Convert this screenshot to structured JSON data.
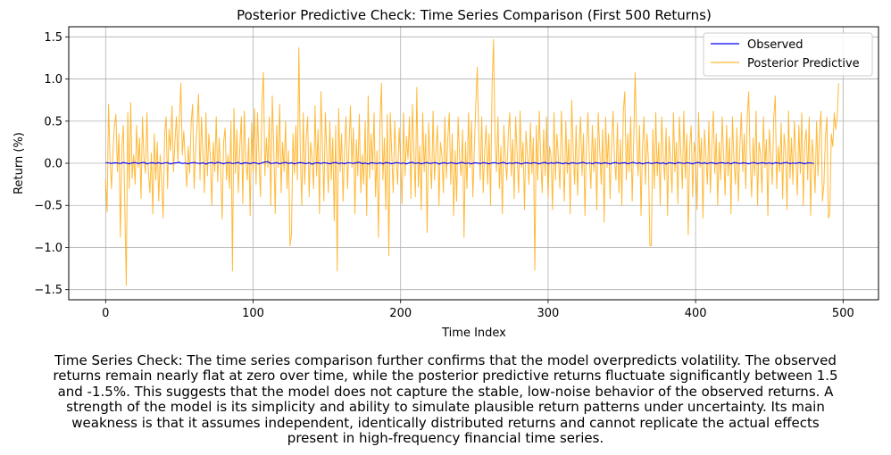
{
  "chart_data": {
    "type": "line",
    "title": "Posterior Predictive Check: Time Series Comparison (First 500 Returns)",
    "xlabel": "Time Index",
    "ylabel": "Return (%)",
    "xlim": [
      -25,
      524
    ],
    "ylim": [
      -1.62,
      1.62
    ],
    "xticks": [
      0,
      100,
      200,
      300,
      400,
      500
    ],
    "xtick_labels": [
      "0",
      "100",
      "200",
      "300",
      "400",
      "500"
    ],
    "yticks": [
      -1.5,
      -1.0,
      -0.5,
      0.0,
      0.5,
      1.0,
      1.5
    ],
    "ytick_labels": [
      "−1.5",
      "−1.0",
      "−0.5",
      "0.0",
      "0.5",
      "1.0",
      "1.5"
    ],
    "grid": true,
    "legend_position": "upper right",
    "series": [
      {
        "name": "Observed",
        "color": "#0000ff",
        "x_start": 0,
        "x_step": 2,
        "values": [
          0.008,
          0.004,
          -0.002,
          0.006,
          0.003,
          -0.004,
          0.01,
          0.002,
          -0.006,
          0.004,
          0.009,
          -0.003,
          0.005,
          0.012,
          -0.008,
          0.003,
          0.006,
          -0.002,
          0.007,
          -0.005,
          0.004,
          0.008,
          -0.009,
          0.002,
          0.006,
          0.011,
          -0.004,
          0.003,
          -0.007,
          0.005,
          0.009,
          0.001,
          -0.003,
          0.006,
          -0.01,
          0.004,
          0.007,
          -0.002,
          0.012,
          0.003,
          -0.006,
          0.005,
          0.008,
          -0.004,
          0.002,
          0.01,
          -0.008,
          0.006,
          0.003,
          -0.005,
          0.007,
          0.004,
          -0.009,
          0.005,
          0.015,
          0.02,
          -0.004,
          0.002,
          0.007,
          -0.006,
          0.004,
          0.011,
          -0.003,
          0.006,
          -0.008,
          0.003,
          0.009,
          0.002,
          -0.005,
          0.007,
          -0.012,
          0.004,
          0.006,
          -0.003,
          0.008,
          0.002,
          -0.007,
          0.005,
          0.01,
          -0.004,
          0.003,
          -0.006,
          0.008,
          0.004,
          -0.002,
          0.006,
          0.012,
          -0.005,
          0.003,
          -0.009,
          0.007,
          0.002,
          -0.004,
          0.006,
          -0.007,
          0.009,
          0.003,
          -0.006,
          0.005,
          0.008,
          -0.003,
          0.004,
          -0.008,
          0.006,
          0.011,
          -0.002,
          0.005,
          -0.007,
          0.003,
          0.009,
          -0.005,
          0.004,
          0.007,
          -0.01,
          0.003,
          0.006,
          -0.004,
          0.008,
          0.002,
          -0.006,
          0.005,
          0.01,
          -0.003,
          0.004,
          -0.008,
          0.006,
          0.003,
          -0.005,
          0.009,
          0.002,
          -0.007,
          0.005,
          0.008,
          -0.004,
          0.003,
          0.011,
          -0.006,
          0.004,
          -0.003,
          0.007,
          0.002,
          -0.009,
          0.005,
          0.006,
          -0.004,
          0.008,
          0.003,
          -0.007,
          0.004,
          0.01,
          -0.005,
          0.006,
          -0.002,
          0.009,
          0.003,
          -0.006,
          0.005,
          -0.008,
          0.007,
          0.002,
          -0.004,
          0.006,
          0.01,
          -0.003,
          0.004,
          -0.007,
          0.008,
          0.003,
          -0.005,
          0.006,
          0.002,
          -0.009,
          0.005,
          0.009,
          -0.004,
          0.003,
          0.007,
          -0.006,
          0.004,
          0.011,
          -0.003,
          0.006,
          -0.008,
          0.002,
          0.008,
          -0.005,
          0.004,
          0.007,
          -0.003,
          0.005,
          -0.009,
          0.006,
          0.003,
          -0.006,
          0.009,
          0.004,
          -0.004,
          0.007,
          0.002,
          -0.007,
          0.005,
          0.01,
          -0.003,
          0.006,
          -0.005,
          0.008,
          0.003,
          -0.006,
          0.004,
          0.007,
          -0.002,
          0.005,
          -0.008,
          0.009,
          0.003,
          -0.004,
          0.006,
          0.002,
          -0.007,
          0.004,
          0.008,
          -0.005,
          0.003,
          0.006,
          -0.003,
          0.005,
          -0.006,
          0.007,
          0.002,
          -0.004,
          0.006,
          0.009,
          -0.005,
          0.004,
          -0.002,
          0.007,
          0.003,
          -0.006,
          0.005,
          0.004,
          -0.003
        ]
      },
      {
        "name": "Posterior Predictive",
        "color": "#ffa500",
        "x_start": 0,
        "x_step": 1,
        "values": [
          -0.2,
          -0.58,
          0.7,
          0.05,
          -0.3,
          0.15,
          0.45,
          0.58,
          -0.1,
          0.35,
          -0.88,
          0.2,
          0.45,
          -0.5,
          -1.45,
          0.6,
          -0.3,
          0.72,
          -0.18,
          0.1,
          -0.25,
          0.45,
          -0.05,
          0.3,
          -0.42,
          0.55,
          0.05,
          -0.12,
          0.6,
          -0.1,
          -0.35,
          0.12,
          -0.6,
          0.35,
          -0.2,
          0.25,
          -0.45,
          0.1,
          -0.22,
          -0.65,
          0.35,
          0.55,
          -0.3,
          0.4,
          0.15,
          0.68,
          -0.1,
          0.25,
          0.55,
          0.02,
          0.5,
          0.95,
          0.1,
          0.38,
          0.05,
          -0.28,
          0.2,
          -0.12,
          0.48,
          0.7,
          -0.3,
          0.15,
          0.45,
          0.82,
          -0.2,
          0.55,
          0.1,
          -0.35,
          0.6,
          -0.15,
          0.35,
          0.08,
          -0.5,
          0.25,
          -0.1,
          0.55,
          -0.22,
          0.3,
          -0.08,
          -0.66,
          0.25,
          0.42,
          -0.2,
          0.1,
          -0.3,
          0.5,
          -1.28,
          0.65,
          -0.12,
          0.4,
          -0.35,
          0.2,
          0.55,
          -0.48,
          0.62,
          0.05,
          -0.2,
          0.3,
          -0.62,
          0.48,
          -0.1,
          0.65,
          -0.25,
          0.6,
          0.05,
          -0.4,
          0.72,
          1.08,
          -0.15,
          0.3,
          -0.05,
          0.55,
          -0.5,
          0.8,
          0.2,
          -0.6,
          0.45,
          -0.05,
          0.7,
          -0.35,
          0.25,
          -0.1,
          0.5,
          -0.3,
          0.15,
          -0.98,
          -0.85,
          0.35,
          -0.12,
          0.45,
          -0.2,
          1.37,
          0.1,
          -0.5,
          0.6,
          -0.25,
          0.3,
          0.55,
          -0.4,
          0.25,
          0.05,
          -0.3,
          0.68,
          -0.15,
          0.4,
          -0.6,
          0.85,
          0.2,
          -0.45,
          0.6,
          0.1,
          -0.35,
          0.5,
          -0.2,
          0.3,
          -0.68,
          0.45,
          -1.28,
          0.65,
          -0.1,
          0.35,
          -0.45,
          0.15,
          0.55,
          -0.3,
          0.2,
          0.68,
          -0.05,
          0.42,
          -0.6,
          0.28,
          -0.15,
          0.58,
          -0.35,
          0.1,
          -0.25,
          0.5,
          -0.62,
          0.8,
          -0.18,
          0.35,
          -0.08,
          0.6,
          -0.4,
          0.15,
          -0.88,
          0.45,
          0.95,
          -0.2,
          0.3,
          -0.55,
          0.58,
          -1.1,
          0.6,
          0.1,
          -0.35,
          0.5,
          0.05,
          -0.25,
          0.42,
          0.02,
          -0.48,
          0.6,
          -0.15,
          0.32,
          0.05,
          0.55,
          -0.42,
          0.7,
          0.15,
          -0.4,
          0.9,
          -0.28,
          0.2,
          -0.55,
          0.6,
          -0.1,
          0.35,
          -0.82,
          0.48,
          0.05,
          -0.3,
          0.62,
          -0.2,
          0.15,
          0.45,
          -0.5,
          0.25,
          0.1,
          -0.35,
          0.55,
          -0.18,
          0.3,
          0.6,
          -0.25,
          0.35,
          -0.62,
          0.15,
          -0.45,
          0.55,
          0.05,
          -0.15,
          0.4,
          -0.88,
          0.25,
          -0.3,
          0.6,
          -0.05,
          0.5,
          -0.4,
          0.2,
          0.72,
          1.14,
          0.3,
          -0.2,
          0.55,
          -0.35,
          0.15,
          0.45,
          -0.25,
          0.35,
          -0.5,
          0.9,
          1.47,
          0.3,
          -0.1,
          0.55,
          -0.3,
          0.2,
          -0.6,
          0.45,
          0.05,
          -0.2,
          0.35,
          0.6,
          -0.15,
          0.28,
          -0.42,
          0.55,
          0.1,
          -0.35,
          0.62,
          -0.05,
          0.25,
          -0.55,
          0.38,
          0.1,
          -0.25,
          0.48,
          -0.12,
          0.3,
          -1.27,
          0.45,
          -0.2,
          0.62,
          0.05,
          -0.35,
          0.4,
          -0.15,
          0.55,
          -0.4,
          0.2,
          0.08,
          -0.55,
          0.6,
          -0.2,
          0.35,
          0.05,
          -0.3,
          0.62,
          0.1,
          -0.45,
          0.5,
          -0.12,
          0.28,
          -0.6,
          0.75,
          0.15,
          -0.25,
          0.45,
          -0.38,
          0.2,
          0.55,
          -0.15,
          0.35,
          -0.62,
          0.2,
          0.6,
          0.05,
          -0.3,
          0.45,
          -0.1,
          0.3,
          -0.55,
          0.6,
          0.15,
          -0.25,
          0.4,
          -0.7,
          0.55,
          -0.05,
          0.35,
          -0.42,
          0.2,
          0.62,
          0.05,
          -0.2,
          0.48,
          -0.35,
          0.28,
          -0.5,
          0.62,
          0.85,
          -0.2,
          0.35,
          -0.1,
          0.55,
          -0.45,
          0.25,
          1.08,
          0.3,
          -0.15,
          0.45,
          -0.62,
          0.2,
          0.55,
          -0.25,
          0.35,
          0.05,
          -0.98,
          -0.98,
          0.4,
          -0.3,
          0.6,
          -0.15,
          0.25,
          -0.5,
          0.55,
          0.1,
          -0.2,
          0.42,
          -0.62,
          0.32,
          0.05,
          -0.35,
          0.6,
          -0.1,
          0.25,
          -0.48,
          0.55,
          0.12,
          -0.3,
          0.62,
          -0.18,
          0.35,
          -0.85,
          0.2,
          0.45,
          -0.4,
          0.25,
          0.1,
          -0.55,
          0.6,
          -0.05,
          0.3,
          -0.65,
          0.4,
          0.08,
          -0.25,
          0.5,
          -0.35,
          0.2,
          0.62,
          -0.12,
          0.35,
          -0.5,
          0.25,
          -0.2,
          0.55,
          0.1,
          -0.38,
          0.45,
          -0.15,
          0.3,
          -0.6,
          0.55,
          0.05,
          -0.25,
          0.42,
          -0.45,
          0.2,
          0.6,
          -0.1,
          0.35,
          -0.3,
          0.55,
          0.85,
          0.05,
          -0.4,
          0.3,
          -0.15,
          0.62,
          -0.5,
          0.25,
          0.12,
          -0.35,
          0.55,
          -0.05,
          0.28,
          -0.62,
          0.4,
          0.1,
          -0.25,
          0.55,
          0.8,
          -0.3,
          0.2,
          -0.1,
          0.48,
          -0.42,
          0.35,
          0.15,
          -0.55,
          0.62,
          -0.18,
          0.3,
          -0.25,
          0.5,
          0.05,
          -0.38,
          0.45,
          -0.12,
          0.6,
          -0.5,
          0.25,
          0.4,
          -0.2,
          0.55,
          -0.62,
          0.28,
          0.05,
          -0.35,
          0.5,
          -0.15,
          0.35,
          0.62,
          -0.45,
          -0.25,
          0.3,
          0.55,
          -0.65,
          -0.6,
          0.35,
          0.2,
          0.6,
          0.4,
          0.55,
          0.95
        ]
      }
    ]
  },
  "caption": {
    "lines": [
      "Time Series Check: The time series comparison further confirms that the model overpredicts volatility. The observed",
      "returns remain nearly flat at zero over time, while the posterior predictive returns fluctuate significantly between 1.5",
      "and -1.5%. This suggests that the model does not capture the stable, low-noise behavior of the observed returns. A",
      "strength of the model is its simplicity and ability to simulate plausible return patterns under uncertainty. Its main",
      "weakness is that it assumes independent, identically distributed returns and cannot replicate the actual effects",
      "present in high-frequency financial time series."
    ]
  }
}
